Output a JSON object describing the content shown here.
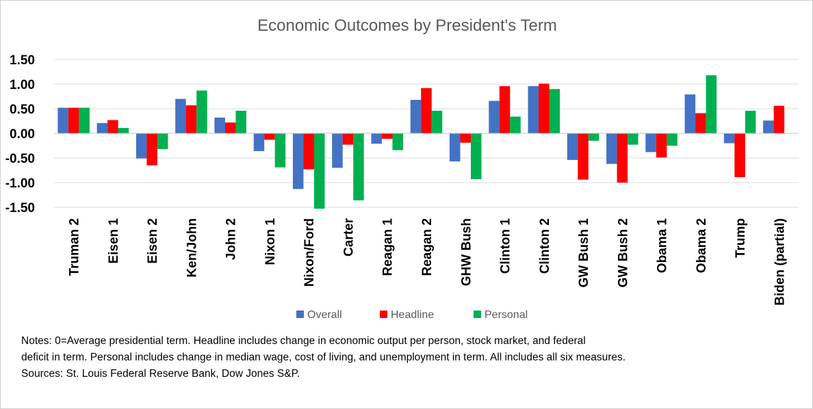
{
  "chart_data": {
    "type": "bar",
    "title": "Economic Outcomes by President's Term",
    "categories": [
      "Truman 2",
      "Eisen 1",
      "Eisen 2",
      "Ken/John",
      "John 2",
      "Nixon 1",
      "Nixon/Ford",
      "Carter",
      "Reagan 1",
      "Reagan 2",
      "GHW Bush",
      "Clinton 1",
      "Clinton 2",
      "GW Bush 1",
      "GW Bush 2",
      "Obama 1",
      "Obama 2",
      "Trump",
      "Biden (partial)"
    ],
    "series": [
      {
        "name": "Overall",
        "color": "#4472C4",
        "values": [
          0.52,
          0.21,
          -0.51,
          0.7,
          0.32,
          -0.36,
          -1.13,
          -0.7,
          -0.21,
          0.68,
          -0.57,
          0.66,
          0.96,
          -0.54,
          -0.62,
          -0.38,
          0.79,
          -0.2,
          0.26
        ]
      },
      {
        "name": "Headline",
        "color": "#FF0000",
        "values": [
          0.52,
          0.27,
          -0.65,
          0.57,
          0.22,
          -0.13,
          -0.73,
          -0.23,
          -0.11,
          0.92,
          -0.19,
          0.96,
          1.01,
          -0.94,
          -1.0,
          -0.49,
          0.41,
          -0.89,
          0.56
        ]
      },
      {
        "name": "Personal",
        "color": "#00B050",
        "values": [
          0.52,
          0.11,
          -0.32,
          0.87,
          0.46,
          -0.69,
          -1.53,
          -1.36,
          -0.34,
          0.46,
          -0.93,
          0.34,
          0.9,
          -0.15,
          -0.23,
          -0.25,
          1.18,
          0.46,
          0.0
        ]
      }
    ],
    "y_ticks": [
      "1.50",
      "1.00",
      "0.50",
      "0.00",
      "-0.50",
      "-1.00",
      "-1.50"
    ],
    "ylim": [
      -1.5,
      1.5
    ],
    "grid": true,
    "legend_position": "bottom"
  },
  "notes": [
    "Notes: 0=Average presidential term. Headline includes change in economic output per person, stock market, and federal",
    "deficit in term. Personal includes change in median wage, cost of living, and unemployment in term. All includes all six measures.",
    "Sources: St. Louis Federal Reserve Bank, Dow Jones S&P."
  ]
}
